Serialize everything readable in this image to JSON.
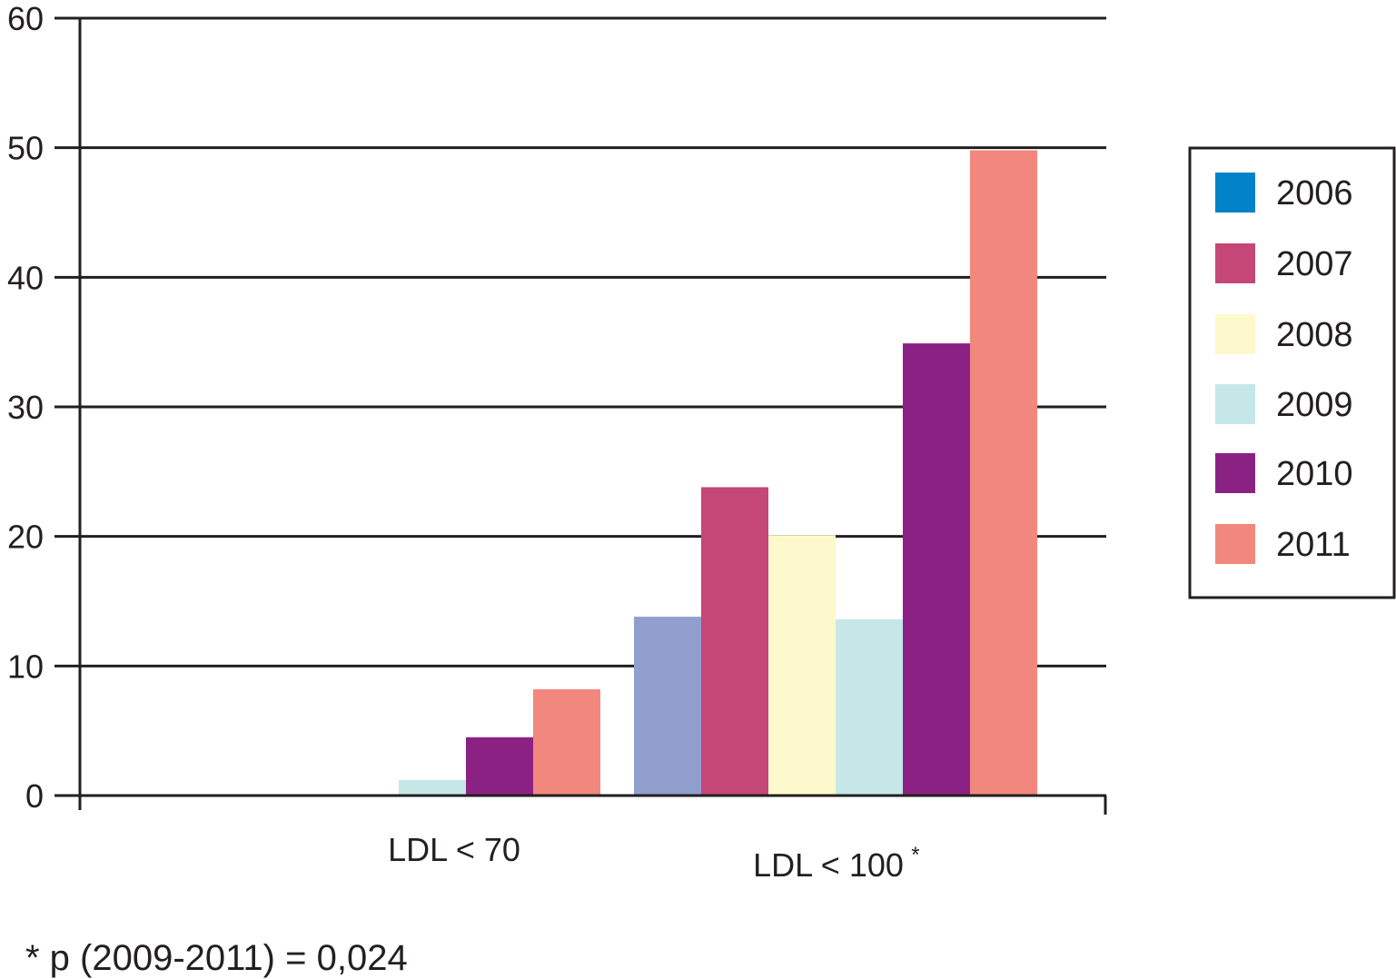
{
  "chart_data": {
    "type": "bar",
    "categories": [
      "LDL < 70",
      "LDL < 100"
    ],
    "category_superscripts": [
      "",
      "*"
    ],
    "series": [
      {
        "name": "2006",
        "color": "#0082c8",
        "values": [
          0,
          13.8
        ]
      },
      {
        "name": "2007",
        "color": "#c44777",
        "values": [
          0,
          23.8
        ]
      },
      {
        "name": "2008",
        "color": "#fdf9cc",
        "values": [
          0,
          20.1
        ]
      },
      {
        "name": "2009",
        "color": "#c6e7e7",
        "values": [
          1.2,
          13.6
        ]
      },
      {
        "name": "2010",
        "color": "#8b2283",
        "values": [
          4.5,
          34.9
        ]
      },
      {
        "name": "2011",
        "color": "#f2877e",
        "values": [
          8.2,
          49.8
        ]
      }
    ],
    "ylim": [
      0,
      60
    ],
    "yticks": [
      "0",
      "10",
      "20",
      "30",
      "40",
      "50",
      "60"
    ],
    "grid": true,
    "legend_position": "right",
    "footnote": "* p (2009-2011) = 0,024"
  }
}
